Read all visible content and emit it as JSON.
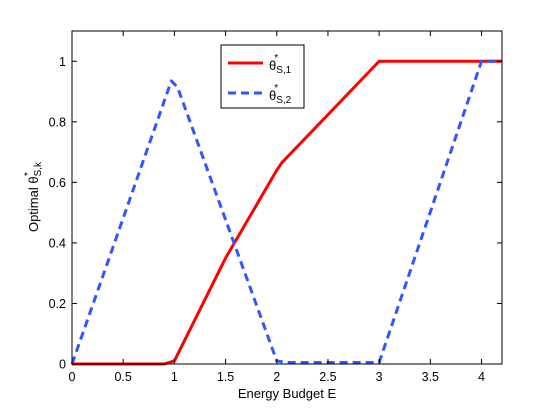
{
  "chart_data": {
    "type": "line",
    "xlabel": "Energy Budget E",
    "ylabel": {
      "prefix": "Optimal ",
      "symbol": "θ",
      "superscript": "*",
      "subscript": "S,k"
    },
    "xlim": [
      0,
      4.2
    ],
    "ylim": [
      0,
      1.1
    ],
    "xticks": [
      0,
      0.5,
      1,
      1.5,
      2,
      2.5,
      3,
      3.5,
      4
    ],
    "xtick_labels": [
      "0",
      "0.5",
      "1",
      "1.5",
      "2",
      "2.5",
      "3",
      "3.5",
      "4"
    ],
    "yticks": [
      0,
      0.2,
      0.4,
      0.6,
      0.8,
      1
    ],
    "ytick_labels": [
      "0",
      "0.2",
      "0.4",
      "0.6",
      "0.8",
      "1"
    ],
    "grid": false,
    "legend_position": "top-center",
    "series": [
      {
        "name": "θS,1*",
        "legend": {
          "symbol": "θ",
          "superscript": "*",
          "subscript": "S,1"
        },
        "color": "#ff0000",
        "style": "solid",
        "x": [
          0,
          0.9,
          1.0,
          1.5,
          2.0,
          2.05,
          3.0,
          4.2
        ],
        "y": [
          0,
          0,
          0.01,
          0.35,
          0.64,
          0.665,
          1.0,
          1.0
        ]
      },
      {
        "name": "θS,2*",
        "legend": {
          "symbol": "θ",
          "superscript": "*",
          "subscript": "S,2"
        },
        "color": "#3355ff",
        "style": "dashed",
        "x": [
          0,
          0.97,
          1.03,
          2.0,
          2.1,
          3.0,
          4.0,
          4.2
        ],
        "y": [
          0,
          0.935,
          0.915,
          0.01,
          0.005,
          0.005,
          1.0,
          1.0
        ]
      }
    ]
  }
}
